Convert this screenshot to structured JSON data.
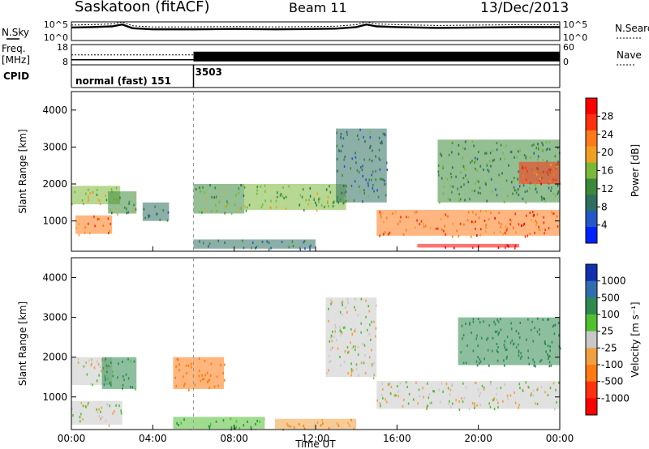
{
  "header": {
    "station": "Saskatoon (fitACF)",
    "beam": "Beam 11",
    "date": "13/Dec/2013"
  },
  "colors": {
    "power_scale": [
      "#0022ff",
      "#2457c8",
      "#2e6e5e",
      "#3a8a3a",
      "#7ab83a",
      "#f0a020",
      "#ff7a1a",
      "#ff3010",
      "#ff0000"
    ],
    "velocity_scale": [
      "#1030b0",
      "#2f6fb0",
      "#2f8a50",
      "#50c030",
      "#c8c8c8",
      "#f0a040",
      "#ff7a10",
      "#ff3010",
      "#ff0000"
    ]
  },
  "chart_data": [
    {
      "type": "line",
      "panel": "noise",
      "left_label": "N.Sky",
      "right_label": "N.Search",
      "left_ticks": [
        "10^5",
        "10^0"
      ],
      "right_ticks": [
        "10^5",
        "10^0"
      ],
      "x": [
        0,
        1,
        2,
        2.5,
        3,
        4,
        6,
        8,
        10,
        12,
        13,
        14,
        14.5,
        15,
        16,
        18,
        20,
        22,
        24
      ],
      "y": [
        3.5,
        3.6,
        3.8,
        4.3,
        3.3,
        3.0,
        3.0,
        3.1,
        3.0,
        3.1,
        3.2,
        3.6,
        4.3,
        3.8,
        3.6,
        3.4,
        3.5,
        3.6,
        3.6
      ]
    },
    {
      "type": "line",
      "panel": "frequency",
      "left_label": "Freq. [MHz]",
      "right_label": "Nave",
      "left_ticks": [
        "18",
        "8"
      ],
      "right_ticks": [
        "60",
        "0"
      ],
      "x": [
        0,
        6,
        6,
        24
      ],
      "y": [
        10.5,
        10.5,
        10.5,
        10.5
      ]
    },
    {
      "type": "table",
      "panel": "cpid",
      "label": "CPID",
      "segments": [
        {
          "start": 0,
          "text": "normal (fast) 151"
        },
        {
          "start": 6,
          "text": "3503"
        }
      ]
    },
    {
      "type": "heatmap",
      "panel": "power",
      "ylabel": "Slant Range [km]",
      "yticks": [
        "4000",
        "3000",
        "2000",
        "1000"
      ],
      "ylim": [
        180,
        4500
      ],
      "colorbar_label": "Power [dB]",
      "colorbar_ticks": [
        "28",
        "24",
        "20",
        "16",
        "12",
        "8",
        "4"
      ],
      "colorbar_range": [
        0,
        32
      ],
      "regions": [
        {
          "x": [
            0,
            2.4
          ],
          "y": [
            1450,
            1950
          ],
          "value": 17
        },
        {
          "x": [
            0.2,
            2.0
          ],
          "y": [
            650,
            1150
          ],
          "value": 23
        },
        {
          "x": [
            1.8,
            3.2
          ],
          "y": [
            1200,
            1800
          ],
          "value": 14
        },
        {
          "x": [
            3.5,
            4.8
          ],
          "y": [
            1000,
            1500
          ],
          "value": 10
        },
        {
          "x": [
            6.0,
            8.5
          ],
          "y": [
            1200,
            2000
          ],
          "value": 14
        },
        {
          "x": [
            6.0,
            12.0
          ],
          "y": [
            250,
            500
          ],
          "value": 9
        },
        {
          "x": [
            8.5,
            13.5
          ],
          "y": [
            1300,
            2000
          ],
          "value": 15
        },
        {
          "x": [
            13.0,
            15.5
          ],
          "y": [
            1500,
            3500
          ],
          "value": 10
        },
        {
          "x": [
            15.0,
            24.0
          ],
          "y": [
            600,
            1300
          ],
          "value": 24
        },
        {
          "x": [
            17.0,
            22.0
          ],
          "y": [
            280,
            380
          ],
          "value": 30
        },
        {
          "x": [
            18.0,
            24.0
          ],
          "y": [
            1500,
            3200
          ],
          "value": 12
        },
        {
          "x": [
            22.0,
            24.0
          ],
          "y": [
            2000,
            2600
          ],
          "value": 25
        }
      ]
    },
    {
      "type": "heatmap",
      "panel": "velocity",
      "ylabel": "Slant Range [km]",
      "yticks": [
        "4000",
        "3000",
        "2000",
        "1000"
      ],
      "ylim": [
        180,
        4500
      ],
      "xlabel": "Time UT",
      "xticks": [
        "00:00",
        "04:00",
        "08:00",
        "12:00",
        "16:00",
        "20:00",
        "00:00"
      ],
      "xlim": [
        0,
        24
      ],
      "colorbar_label": "Velocity [m s^-1]",
      "colorbar_ticks": [
        "1000",
        "500",
        "100",
        "25",
        "-25",
        "-100",
        "-500",
        "-1000"
      ],
      "regions": [
        {
          "x": [
            0,
            2.0
          ],
          "y": [
            1300,
            2000
          ],
          "value": 0
        },
        {
          "x": [
            1.5,
            3.2
          ],
          "y": [
            1200,
            2000
          ],
          "value": 150
        },
        {
          "x": [
            0,
            2.5
          ],
          "y": [
            300,
            900
          ],
          "value": 0
        },
        {
          "x": [
            5.0,
            7.5
          ],
          "y": [
            1200,
            2000
          ],
          "value": -300
        },
        {
          "x": [
            5.0,
            9.5
          ],
          "y": [
            200,
            500
          ],
          "value": 80
        },
        {
          "x": [
            10.0,
            14.0
          ],
          "y": [
            200,
            450
          ],
          "value": -100
        },
        {
          "x": [
            12.5,
            15.0
          ],
          "y": [
            1500,
            3500
          ],
          "value": 0
        },
        {
          "x": [
            15.0,
            24.0
          ],
          "y": [
            700,
            1400
          ],
          "value": 0
        },
        {
          "x": [
            19.0,
            24.0
          ],
          "y": [
            1800,
            3000
          ],
          "value": 300
        }
      ]
    }
  ]
}
